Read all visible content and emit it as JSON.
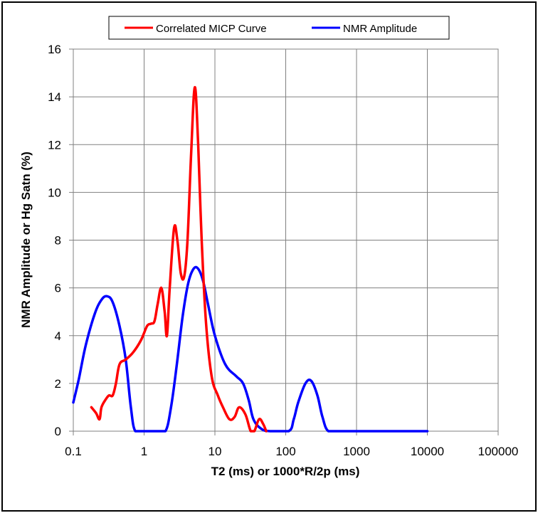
{
  "chart_data": {
    "type": "line",
    "xscale": "log",
    "xlim": [
      0.1,
      100000
    ],
    "ylim": [
      0,
      16
    ],
    "grid": true,
    "legend_position": "top-center",
    "xlabel": "T2 (ms) or 1000*R/2p (ms)",
    "ylabel": "NMR Amplitude or Hg Satn (%)",
    "x_ticks": [
      0.1,
      1,
      10,
      100,
      1000,
      10000,
      100000
    ],
    "x_tick_labels": [
      "0.1",
      "1",
      "10",
      "100",
      "1000",
      "10000",
      "100000"
    ],
    "y_ticks": [
      0,
      2,
      4,
      6,
      8,
      10,
      12,
      14,
      16
    ],
    "y_tick_labels": [
      "0",
      "2",
      "4",
      "6",
      "8",
      "10",
      "12",
      "14",
      "16"
    ],
    "series": [
      {
        "name": "Correlated MICP Curve",
        "color": "#ff0000",
        "points": [
          [
            0.18,
            1.0
          ],
          [
            0.21,
            0.75
          ],
          [
            0.235,
            0.5
          ],
          [
            0.25,
            1.0
          ],
          [
            0.29,
            1.35
          ],
          [
            0.32,
            1.5
          ],
          [
            0.36,
            1.5
          ],
          [
            0.4,
            2.0
          ],
          [
            0.45,
            2.8
          ],
          [
            0.55,
            3.0
          ],
          [
            0.7,
            3.3
          ],
          [
            0.9,
            3.8
          ],
          [
            1.1,
            4.4
          ],
          [
            1.25,
            4.5
          ],
          [
            1.4,
            4.6
          ],
          [
            1.55,
            5.3
          ],
          [
            1.75,
            6.0
          ],
          [
            1.95,
            5.0
          ],
          [
            2.1,
            4.0
          ],
          [
            2.3,
            6.0
          ],
          [
            2.65,
            8.5
          ],
          [
            2.95,
            8.0
          ],
          [
            3.3,
            6.6
          ],
          [
            3.7,
            6.5
          ],
          [
            4.1,
            8.0
          ],
          [
            4.6,
            11.5
          ],
          [
            5.2,
            14.4
          ],
          [
            5.8,
            12.0
          ],
          [
            6.5,
            8.0
          ],
          [
            7.5,
            4.5
          ],
          [
            9.0,
            2.3
          ],
          [
            11.0,
            1.5
          ],
          [
            13.0,
            1.0
          ],
          [
            16.0,
            0.5
          ],
          [
            19.0,
            0.6
          ],
          [
            22.0,
            1.0
          ],
          [
            27.0,
            0.7
          ],
          [
            32.0,
            0.0
          ],
          [
            36.0,
            0.0
          ],
          [
            42.0,
            0.5
          ],
          [
            48.0,
            0.3
          ],
          [
            53.0,
            0.0
          ]
        ]
      },
      {
        "name": "NMR Amplitude",
        "color": "#0000ff",
        "points": [
          [
            0.1,
            1.2
          ],
          [
            0.12,
            2.2
          ],
          [
            0.15,
            3.6
          ],
          [
            0.2,
            4.9
          ],
          [
            0.25,
            5.5
          ],
          [
            0.3,
            5.65
          ],
          [
            0.36,
            5.4
          ],
          [
            0.45,
            4.4
          ],
          [
            0.55,
            3.0
          ],
          [
            0.65,
            1.0
          ],
          [
            0.75,
            0.0
          ],
          [
            1.0,
            0.0
          ],
          [
            1.5,
            0.0
          ],
          [
            2.0,
            0.0
          ],
          [
            2.4,
            1.0
          ],
          [
            2.9,
            2.8
          ],
          [
            3.5,
            4.8
          ],
          [
            4.2,
            6.2
          ],
          [
            5.0,
            6.8
          ],
          [
            5.8,
            6.8
          ],
          [
            6.8,
            6.3
          ],
          [
            8.0,
            5.3
          ],
          [
            10.0,
            4.0
          ],
          [
            14.0,
            2.8
          ],
          [
            20.0,
            2.3
          ],
          [
            25.0,
            2.0
          ],
          [
            30.0,
            1.3
          ],
          [
            35.0,
            0.5
          ],
          [
            45.0,
            0.1
          ],
          [
            60.0,
            0.0
          ],
          [
            110.0,
            0.0
          ],
          [
            130.0,
            0.5
          ],
          [
            150.0,
            1.2
          ],
          [
            190.0,
            2.0
          ],
          [
            230.0,
            2.1
          ],
          [
            280.0,
            1.5
          ],
          [
            330.0,
            0.6
          ],
          [
            400.0,
            0.0
          ],
          [
            600.0,
            0.0
          ],
          [
            1000.0,
            0.0
          ],
          [
            10000.0,
            0.0
          ]
        ]
      }
    ]
  }
}
